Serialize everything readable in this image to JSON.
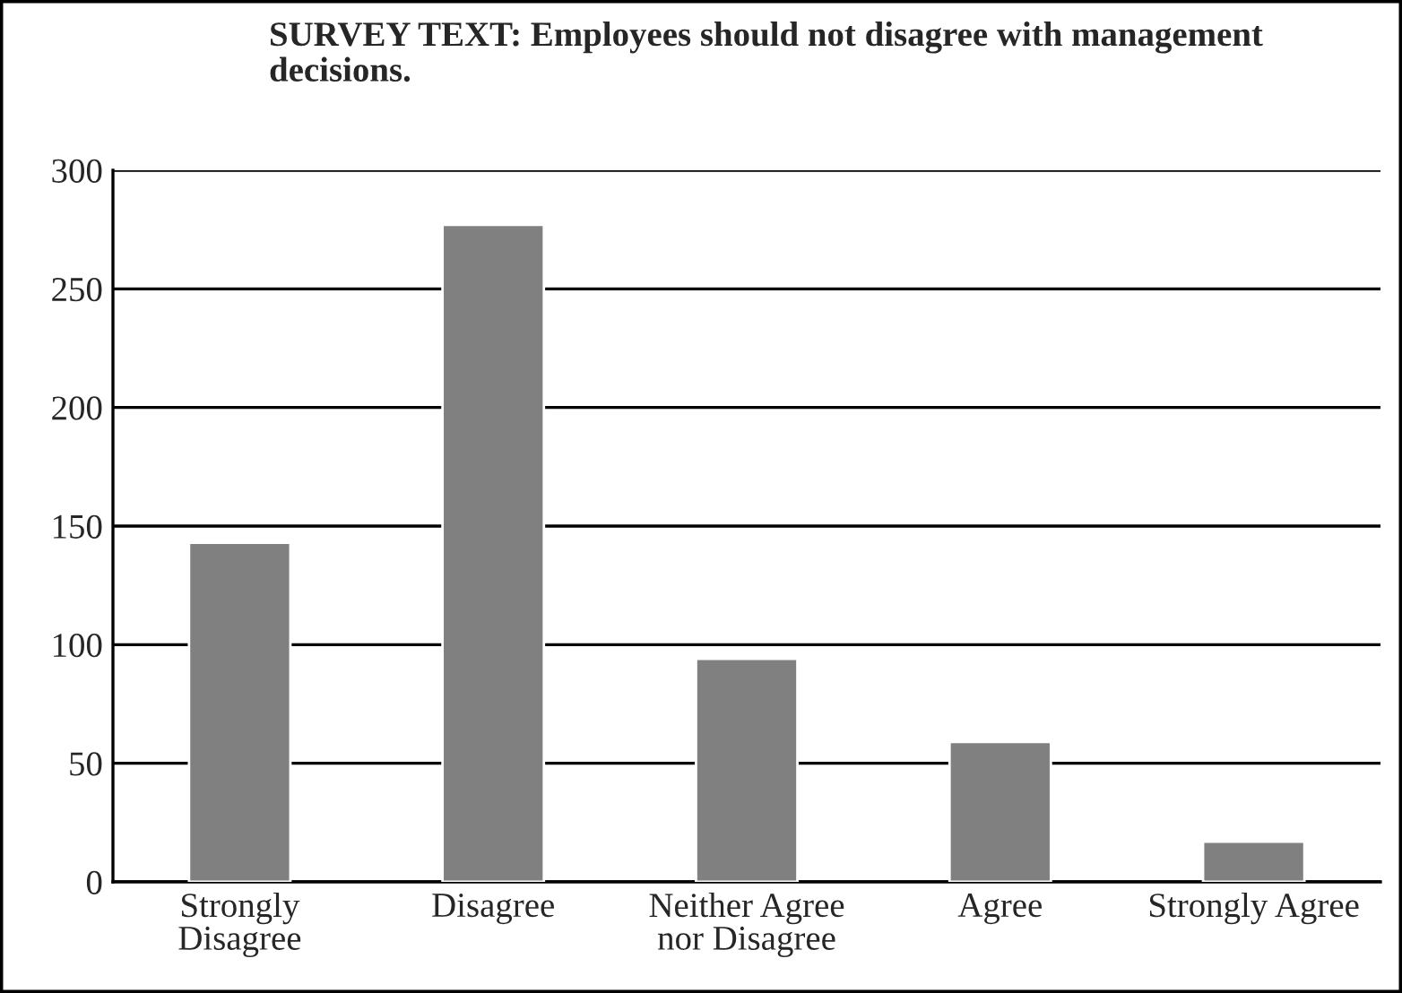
{
  "chart_data": {
    "type": "bar",
    "title": "SURVEY TEXT: Employees should not disagree with management decisions.",
    "categories": [
      "Strongly Disagree",
      "Disagree",
      "Neither Agree nor Disagree",
      "Agree",
      "Strongly Agree"
    ],
    "values": [
      143,
      277,
      94,
      59,
      17
    ],
    "color": "#808080",
    "ylim": [
      0,
      300
    ],
    "yticks": [
      0,
      50,
      100,
      150,
      200,
      250,
      300
    ],
    "grid": "y",
    "legend": false
  }
}
